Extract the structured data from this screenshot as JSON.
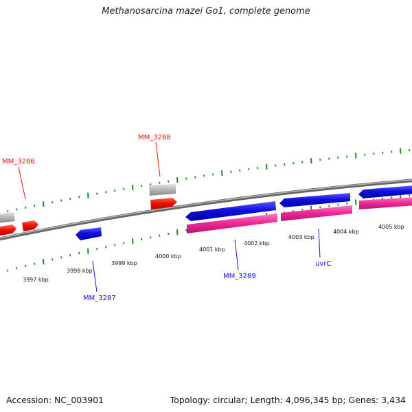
{
  "title": "Methanosarcina mazei Go1, complete genome",
  "accession": "Accession: NC_003901",
  "summary": "Topology: circular; Length: 4,096,345 bp; Genes: 3,434",
  "colors": {
    "backbone": "#8a8a8a",
    "ticks": "#1e8a1e",
    "forward_gene": "#ee1100",
    "reverse_gene": "#1010dd",
    "rna_gene": "#f02a9a",
    "pseudo_gene": "#b4b4b4"
  },
  "position_labels": [
    "3997 kbp",
    "3998 kbp",
    "3999 kbp",
    "4000 kbp",
    "4001 kbp",
    "4002 kbp",
    "4003 kbp",
    "4004 kbp",
    "4005 kbp"
  ],
  "gene_labels": [
    {
      "name": "MM_3286",
      "strand": "forward"
    },
    {
      "name": "MM_3288",
      "strand": "forward"
    },
    {
      "name": "MM_3287",
      "strand": "reverse"
    },
    {
      "name": "MM_3289",
      "strand": "reverse"
    },
    {
      "name": "uvrC",
      "strand": "reverse"
    }
  ]
}
